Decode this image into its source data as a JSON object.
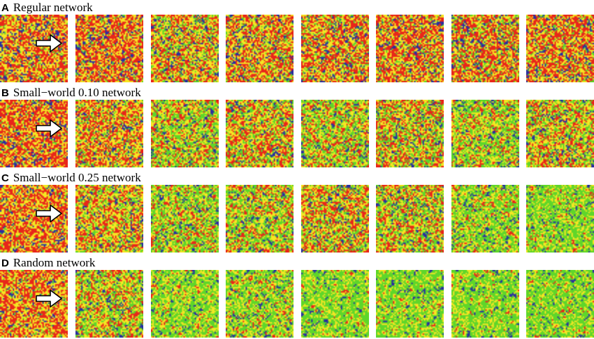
{
  "panels": [
    {
      "letter": "A",
      "title": "Regular network",
      "tile_color_mix": [
        [
          0.4,
          0.4,
          0.08,
          0.12
        ],
        [
          0.45,
          0.36,
          0.08,
          0.11
        ],
        [
          0.3,
          0.38,
          0.22,
          0.1
        ],
        [
          0.36,
          0.38,
          0.16,
          0.1
        ],
        [
          0.38,
          0.36,
          0.16,
          0.1
        ],
        [
          0.42,
          0.36,
          0.12,
          0.1
        ],
        [
          0.4,
          0.32,
          0.18,
          0.1
        ],
        [
          0.42,
          0.36,
          0.12,
          0.1
        ]
      ]
    },
    {
      "letter": "B",
      "title": "Small−world 0.10 network",
      "tile_color_mix": [
        [
          0.48,
          0.36,
          0.06,
          0.1
        ],
        [
          0.36,
          0.4,
          0.16,
          0.08
        ],
        [
          0.2,
          0.34,
          0.38,
          0.08
        ],
        [
          0.3,
          0.36,
          0.26,
          0.08
        ],
        [
          0.2,
          0.34,
          0.38,
          0.08
        ],
        [
          0.28,
          0.34,
          0.3,
          0.08
        ],
        [
          0.16,
          0.34,
          0.42,
          0.08
        ],
        [
          0.26,
          0.36,
          0.3,
          0.08
        ]
      ]
    },
    {
      "letter": "C",
      "title": "Small−world 0.25 network",
      "tile_color_mix": [
        [
          0.46,
          0.4,
          0.06,
          0.08
        ],
        [
          0.3,
          0.4,
          0.22,
          0.08
        ],
        [
          0.16,
          0.32,
          0.44,
          0.08
        ],
        [
          0.2,
          0.34,
          0.38,
          0.08
        ],
        [
          0.3,
          0.36,
          0.26,
          0.08
        ],
        [
          0.24,
          0.34,
          0.34,
          0.08
        ],
        [
          0.1,
          0.32,
          0.5,
          0.08
        ],
        [
          0.06,
          0.3,
          0.58,
          0.06
        ]
      ]
    },
    {
      "letter": "D",
      "title": "Random network",
      "tile_color_mix": [
        [
          0.44,
          0.42,
          0.08,
          0.06
        ],
        [
          0.22,
          0.36,
          0.34,
          0.08
        ],
        [
          0.06,
          0.34,
          0.54,
          0.06
        ],
        [
          0.1,
          0.34,
          0.48,
          0.08
        ],
        [
          0.04,
          0.3,
          0.6,
          0.06
        ],
        [
          0.04,
          0.3,
          0.6,
          0.06
        ],
        [
          0.04,
          0.3,
          0.6,
          0.06
        ],
        [
          0.04,
          0.28,
          0.62,
          0.06
        ]
      ]
    }
  ],
  "tile_palette": {
    "red": "#e8261a",
    "yellow": "#f5e623",
    "green": "#5fd62a",
    "blue": "#2a2ea0"
  },
  "arrow": {
    "icon": "white-arrow-icon",
    "fill": "#ffffff",
    "stroke": "#000000"
  }
}
